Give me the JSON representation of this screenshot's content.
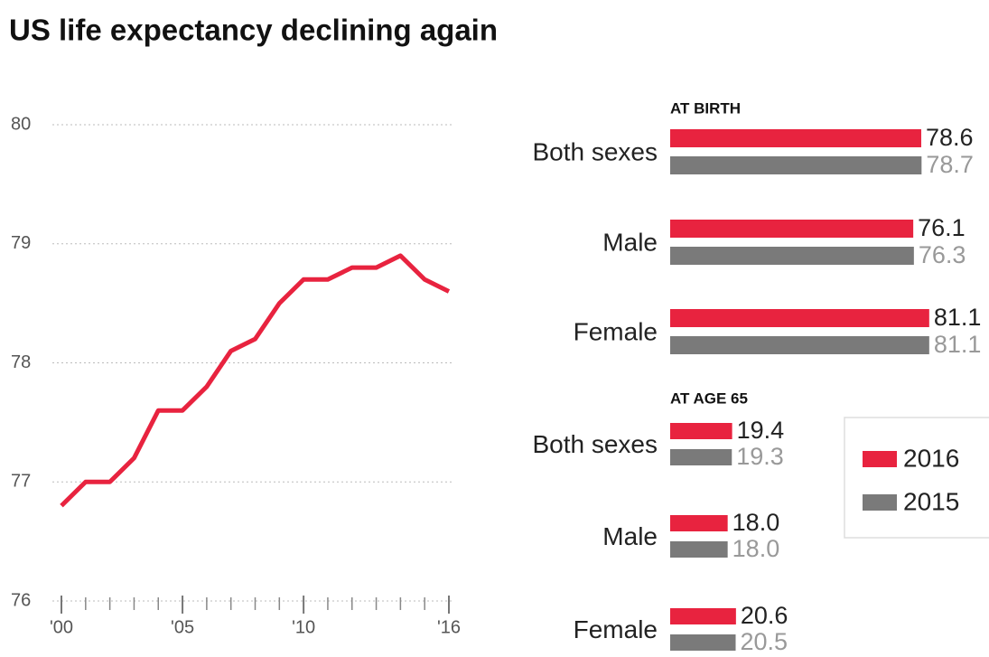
{
  "title": "US life expectancy declining again",
  "chart_data": [
    {
      "type": "line",
      "x": [
        2000,
        2001,
        2002,
        2003,
        2004,
        2005,
        2006,
        2007,
        2008,
        2009,
        2010,
        2011,
        2012,
        2013,
        2014,
        2015,
        2016
      ],
      "values": [
        76.8,
        77.0,
        77.0,
        77.2,
        77.6,
        77.6,
        77.8,
        78.1,
        78.2,
        78.5,
        78.7,
        78.7,
        78.8,
        78.8,
        78.9,
        78.7,
        78.6
      ],
      "color": "#e8233f",
      "xlim": [
        2000,
        2016
      ],
      "xticks": [
        {
          "value": 2000,
          "label": "'00"
        },
        {
          "value": 2005,
          "label": "'05"
        },
        {
          "value": 2010,
          "label": "'10"
        },
        {
          "value": 2016,
          "label": "'16"
        }
      ],
      "ylim": [
        76,
        80
      ],
      "yticks": [
        76,
        77,
        78,
        79,
        80
      ],
      "grid": true
    },
    {
      "type": "hbar",
      "xlim": [
        0,
        82
      ],
      "series": [
        {
          "name": "2016",
          "color": "#e8233f"
        },
        {
          "name": "2015",
          "color": "#7a7a7a"
        }
      ],
      "panels": [
        {
          "title": "AT BIRTH",
          "categories": [
            "Both sexes",
            "Male",
            "Female"
          ],
          "series": [
            {
              "values": [
                78.6,
                76.1,
                81.1
              ]
            },
            {
              "values": [
                78.7,
                76.3,
                81.1
              ]
            }
          ]
        },
        {
          "title": "AT AGE 65",
          "categories": [
            "Both sexes",
            "Male",
            "Female"
          ],
          "series": [
            {
              "values": [
                19.4,
                18.0,
                20.6
              ],
              "value_labels": [
                "19.4",
                "18.0",
                "20.6"
              ]
            },
            {
              "values": [
                19.3,
                18.0,
                20.5
              ],
              "value_labels": [
                "19.3",
                "18.0",
                "20.5"
              ]
            }
          ]
        }
      ],
      "legend": "right"
    }
  ]
}
